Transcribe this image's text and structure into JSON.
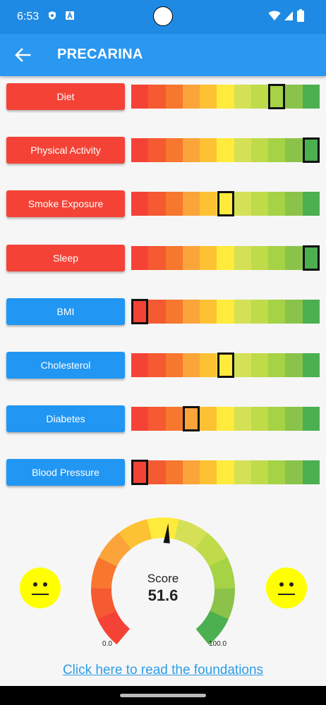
{
  "status_bar": {
    "time": "6:53",
    "icons": [
      "shield-icon",
      "font-icon",
      "wifi-icon",
      "signal-icon",
      "battery-icon"
    ]
  },
  "app_bar": {
    "title": "PRECARINA",
    "back_icon": "arrow-left-icon"
  },
  "scale_colors": [
    "#f44336",
    "#f55a32",
    "#f7772f",
    "#faa43a",
    "#fdc234",
    "#ffeb3b",
    "#d4e157",
    "#bfdb4a",
    "#a6d245",
    "#8bc34a",
    "#4caf50"
  ],
  "metrics": [
    {
      "label": "Diet",
      "button_color": "red",
      "level": 8
    },
    {
      "label": "Physical Activity",
      "button_color": "red",
      "level": 10
    },
    {
      "label": "Smoke Exposure",
      "button_color": "red",
      "level": 5
    },
    {
      "label": "Sleep",
      "button_color": "red",
      "level": 10
    },
    {
      "label": "BMI",
      "button_color": "blue",
      "level": 0
    },
    {
      "label": "Cholesterol",
      "button_color": "blue",
      "level": 5
    },
    {
      "label": "Diabetes",
      "button_color": "blue",
      "level": 3
    },
    {
      "label": "Blood Pressure",
      "button_color": "blue",
      "level": 0
    }
  ],
  "gauge": {
    "label": "Score",
    "value": 51.6,
    "value_text": "51.6",
    "min_label": "0.0",
    "max_label": "100.0",
    "min": 0,
    "max": 100
  },
  "faces": {
    "left_icon": "neutral-face-icon",
    "right_icon": "neutral-face-icon"
  },
  "link_text": "Click here to read the foundations"
}
